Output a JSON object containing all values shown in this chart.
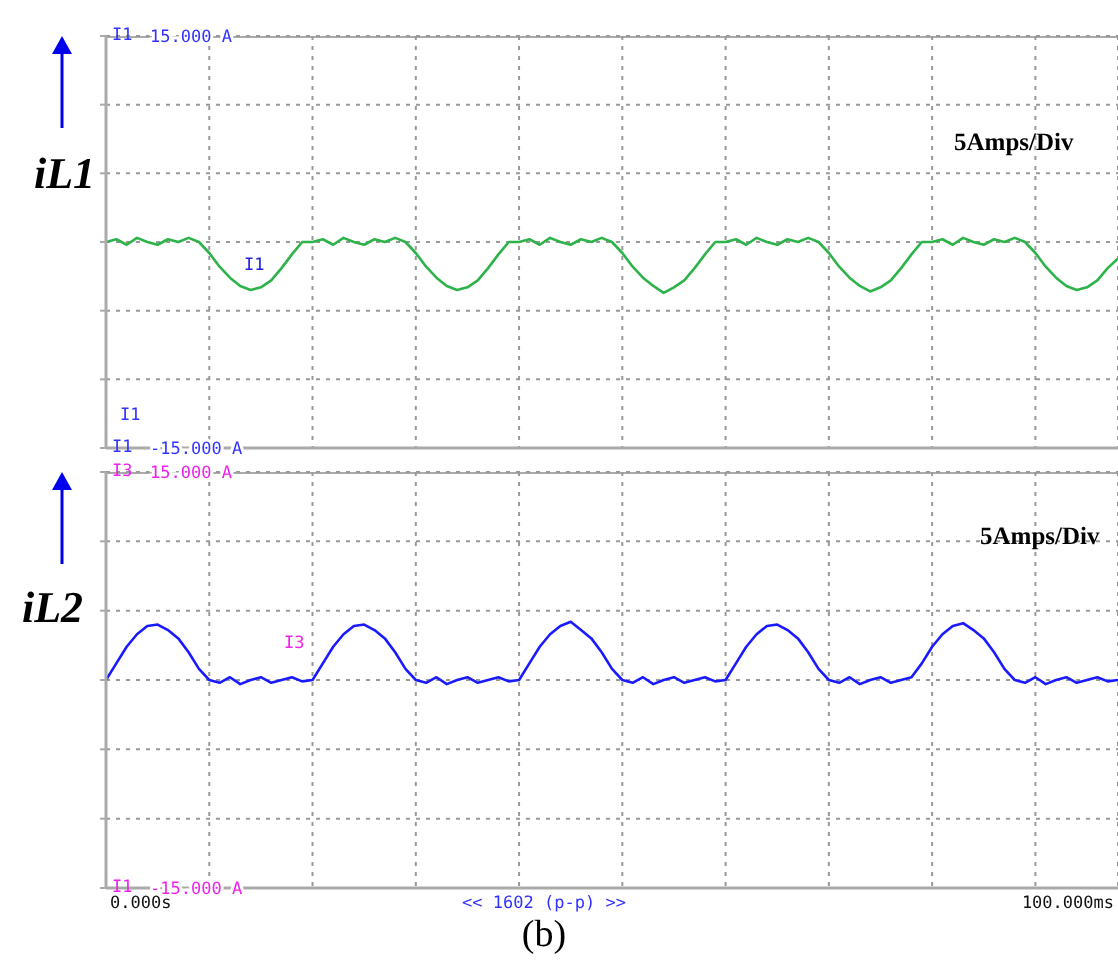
{
  "chart_data": [
    {
      "type": "line",
      "ylabel": "iL1",
      "annotations": [
        "5Amps/Div",
        "I1",
        "I1",
        "I1",
        "I1"
      ],
      "categories": [
        null,
        null,
        null,
        null,
        null,
        null,
        null,
        null,
        null,
        null,
        null,
        null,
        null,
        null,
        null,
        null,
        null,
        null,
        null,
        null,
        null,
        null,
        null,
        null,
        null,
        null,
        null,
        null,
        null,
        null,
        null,
        null,
        null,
        null,
        null,
        null,
        null,
        null,
        null,
        null,
        null,
        null,
        null,
        null,
        null,
        null,
        null,
        null,
        null,
        null,
        null,
        null,
        null,
        null,
        null,
        null,
        null,
        null,
        null,
        null,
        null,
        null,
        null,
        null,
        null,
        null,
        null,
        null,
        null,
        null,
        null,
        null,
        null,
        null,
        null,
        null,
        null,
        null,
        null,
        null,
        null,
        null,
        null,
        null,
        null,
        null,
        null,
        null,
        null,
        null,
        null,
        null,
        null,
        null,
        null,
        null,
        null,
        null,
        null
      ],
      "series": [
        {
          "color": "#2db34a",
          "values": [
            0,
            0.2,
            -0.2,
            0.3,
            0,
            -0.2,
            0.2,
            0,
            0.3,
            0,
            -0.8,
            -1.8,
            -2.6,
            -3.2,
            -3.5,
            -3.3,
            -2.8,
            -1.9,
            -0.9,
            0,
            0,
            0.2,
            -0.2,
            0.3,
            0,
            -0.2,
            0.2,
            0,
            0.3,
            0,
            -0.8,
            -1.8,
            -2.6,
            -3.2,
            -3.5,
            -3.3,
            -2.8,
            -1.9,
            -0.9,
            0,
            0,
            0.2,
            -0.2,
            0.3,
            0,
            -0.2,
            0.2,
            0,
            0.3,
            0,
            -0.8,
            -1.8,
            -2.6,
            -3.2,
            -3.7,
            -3.3,
            -2.8,
            -1.9,
            -0.9,
            0,
            0,
            0.2,
            -0.2,
            0.3,
            0,
            -0.2,
            0.2,
            0,
            0.3,
            0,
            -0.8,
            -1.8,
            -2.6,
            -3.2,
            -3.6,
            -3.3,
            -2.8,
            -1.9,
            -0.9,
            0,
            0,
            0.2,
            -0.2,
            0.3,
            0,
            -0.2,
            0.2,
            0,
            0.3,
            0,
            -0.8,
            -1.8,
            -2.6,
            -3.2,
            -3.5,
            -3.3,
            -2.8,
            -1.9,
            -1.2
          ]
        }
      ],
      "ylim": [
        -15,
        15
      ],
      "yticks": [
        {
          "value": 15,
          "label": "15.000 A"
        },
        {
          "value": 10,
          "label": null
        },
        {
          "value": 5,
          "label": null
        },
        {
          "value": 0,
          "label": null
        },
        {
          "value": -5,
          "label": null
        },
        {
          "value": -10,
          "label": null
        },
        {
          "value": -15,
          "label": "-15.000 A"
        }
      ],
      "tick_labels": "y",
      "grid": true,
      "marker": "none",
      "line_style": "solid"
    },
    {
      "type": "line",
      "ylabel": "iL2",
      "annotations": [
        "5Amps/Div",
        "I3",
        "<< 1602 (p-p) >>",
        "(b)",
        "I3",
        "I1",
        "0.000s",
        "100.000ms"
      ],
      "categories": [
        null,
        null,
        null,
        null,
        null,
        null,
        null,
        null,
        null,
        null,
        null,
        null,
        null,
        null,
        null,
        null,
        null,
        null,
        null,
        null,
        null,
        null,
        null,
        null,
        null,
        null,
        null,
        null,
        null,
        null,
        null,
        null,
        null,
        null,
        null,
        null,
        null,
        null,
        null,
        null,
        null,
        null,
        null,
        null,
        null,
        null,
        null,
        null,
        null,
        null,
        null,
        null,
        null,
        null,
        null,
        null,
        null,
        null,
        null,
        null,
        null,
        null,
        null,
        null,
        null,
        null,
        null,
        null,
        null,
        null,
        null,
        null,
        null,
        null,
        null,
        null,
        null,
        null,
        null,
        null,
        null,
        null,
        null,
        null,
        null,
        null,
        null,
        null,
        null,
        null,
        null,
        null,
        null,
        null,
        null,
        null,
        null,
        null,
        null
      ],
      "series": [
        {
          "color": "#1a1aff",
          "values": [
            0,
            1.2,
            2.4,
            3.3,
            3.9,
            4,
            3.6,
            3,
            2,
            0.8,
            0,
            -0.2,
            0.2,
            -0.3,
            0,
            0.2,
            -0.2,
            0,
            0.2,
            -0.1,
            0,
            1.2,
            2.4,
            3.3,
            3.9,
            4,
            3.6,
            3,
            2,
            0.8,
            0,
            -0.2,
            0.2,
            -0.3,
            0,
            0.2,
            -0.2,
            0,
            0.2,
            -0.1,
            0,
            1.2,
            2.4,
            3.3,
            3.9,
            4.2,
            3.6,
            3,
            2,
            0.8,
            0,
            -0.2,
            0.2,
            -0.3,
            0,
            0.2,
            -0.2,
            0,
            0.2,
            -0.1,
            0,
            1.2,
            2.4,
            3.3,
            3.9,
            4,
            3.6,
            3,
            2,
            0.8,
            0,
            -0.2,
            0.2,
            -0.3,
            0,
            0.2,
            -0.2,
            0,
            0.2,
            1.2,
            2.4,
            3.3,
            3.9,
            4.1,
            3.6,
            3,
            2,
            0.8,
            0,
            -0.2,
            0.2,
            -0.3,
            0,
            0.2,
            -0.2,
            0,
            0.2,
            -0.1,
            0
          ]
        }
      ],
      "ylim": [
        -15,
        15
      ],
      "yticks": [
        {
          "value": 15,
          "label": "15.000 A"
        },
        {
          "value": 10,
          "label": null
        },
        {
          "value": 5,
          "label": null
        },
        {
          "value": 0,
          "label": null
        },
        {
          "value": -5,
          "label": null
        },
        {
          "value": -10,
          "label": null
        },
        {
          "value": -15,
          "label": "-15.000 A"
        }
      ],
      "grid": true,
      "marker": "none",
      "line_style": "solid"
    }
  ]
}
